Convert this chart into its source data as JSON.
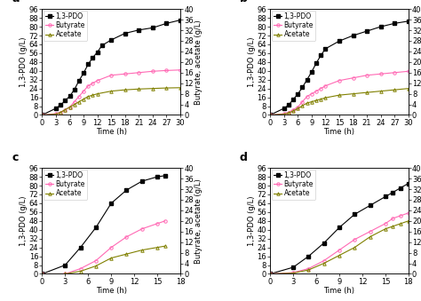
{
  "panel_a": {
    "label": "a",
    "pdo_time": [
      0,
      3,
      4,
      5,
      6,
      7,
      8,
      9,
      10,
      11,
      12,
      13,
      15,
      18,
      21,
      24,
      27,
      30
    ],
    "pdo_vals": [
      0,
      6,
      9,
      13,
      17,
      23,
      31,
      38,
      46,
      52,
      57,
      63,
      68,
      74,
      77,
      79,
      83,
      86
    ],
    "butyrate_time": [
      0,
      3,
      4,
      5,
      6,
      7,
      8,
      9,
      10,
      11,
      12,
      15,
      18,
      21,
      24,
      27,
      30
    ],
    "butyrate_vals": [
      0,
      0.5,
      1,
      2,
      3,
      5,
      7,
      9,
      11,
      12,
      13,
      15,
      15.5,
      16,
      16.5,
      16.8,
      17
    ],
    "acetate_time": [
      0,
      3,
      4,
      5,
      6,
      7,
      8,
      9,
      10,
      11,
      12,
      15,
      18,
      21,
      24,
      27,
      30
    ],
    "acetate_vals": [
      0,
      0.3,
      1,
      2,
      3,
      4,
      5,
      6,
      7,
      7.5,
      8,
      9,
      9.5,
      9.8,
      10,
      10.2,
      10.3
    ],
    "xlim": [
      0,
      30
    ],
    "xticks": [
      0,
      3,
      6,
      9,
      12,
      15,
      18,
      21,
      24,
      27,
      30
    ],
    "ylim_left": [
      0,
      96
    ],
    "ylim_right": [
      0,
      40
    ],
    "yticks_left": [
      0,
      8,
      16,
      24,
      32,
      40,
      48,
      56,
      64,
      72,
      80,
      88,
      96
    ],
    "yticks_right": [
      0,
      4,
      8,
      12,
      16,
      20,
      24,
      28,
      32,
      36,
      40
    ]
  },
  "panel_b": {
    "label": "b",
    "pdo_time": [
      0,
      3,
      4,
      5,
      6,
      7,
      8,
      9,
      10,
      11,
      12,
      15,
      18,
      21,
      24,
      27,
      30
    ],
    "pdo_vals": [
      0,
      6,
      9,
      14,
      19,
      25,
      32,
      39,
      47,
      54,
      60,
      67,
      72,
      76,
      80,
      83,
      85
    ],
    "butyrate_time": [
      0,
      3,
      4,
      5,
      6,
      7,
      8,
      9,
      10,
      11,
      12,
      15,
      18,
      21,
      24,
      27,
      30
    ],
    "butyrate_vals": [
      0,
      0.5,
      1,
      2,
      3,
      5,
      7,
      8,
      9,
      10,
      11,
      13,
      14,
      15,
      15.5,
      16,
      16.5
    ],
    "acetate_time": [
      0,
      3,
      4,
      5,
      6,
      7,
      8,
      9,
      10,
      11,
      12,
      15,
      18,
      21,
      24,
      27,
      30
    ],
    "acetate_vals": [
      0,
      0.3,
      0.8,
      1.5,
      2.5,
      3.5,
      4.5,
      5,
      5.5,
      6,
      6.5,
      7.5,
      8,
      8.5,
      9,
      9.5,
      10
    ],
    "xlim": [
      0,
      30
    ],
    "xticks": [
      0,
      3,
      6,
      9,
      12,
      15,
      18,
      21,
      24,
      27,
      30
    ],
    "ylim_left": [
      0,
      96
    ],
    "ylim_right": [
      0,
      40
    ],
    "yticks_left": [
      0,
      8,
      16,
      24,
      32,
      40,
      48,
      56,
      64,
      72,
      80,
      88,
      96
    ],
    "yticks_right": [
      0,
      4,
      8,
      12,
      16,
      20,
      24,
      28,
      32,
      36,
      40
    ]
  },
  "panel_c": {
    "label": "c",
    "pdo_time": [
      0,
      3,
      5,
      7,
      9,
      11,
      13,
      15,
      16
    ],
    "pdo_vals": [
      0,
      8,
      24,
      42,
      64,
      76,
      84,
      88,
      89
    ],
    "butyrate_time": [
      0,
      3,
      5,
      7,
      9,
      11,
      13,
      15,
      16
    ],
    "butyrate_vals": [
      0,
      0,
      2,
      5,
      10,
      14,
      17,
      19,
      20
    ],
    "acetate_time": [
      0,
      3,
      5,
      7,
      9,
      11,
      13,
      15,
      16
    ],
    "acetate_vals": [
      0,
      0,
      1,
      3,
      6,
      7.5,
      9,
      10,
      10.5
    ],
    "xlim": [
      0,
      18
    ],
    "xticks": [
      0,
      3,
      6,
      9,
      12,
      15,
      18
    ],
    "ylim_left": [
      0,
      96
    ],
    "ylim_right": [
      0,
      40
    ],
    "yticks_left": [
      0,
      8,
      16,
      24,
      32,
      40,
      48,
      56,
      64,
      72,
      80,
      88,
      96
    ],
    "yticks_right": [
      0,
      4,
      8,
      12,
      16,
      20,
      24,
      28,
      32,
      36,
      40
    ]
  },
  "panel_d": {
    "label": "d",
    "pdo_time": [
      0,
      3,
      5,
      7,
      9,
      11,
      13,
      15,
      16,
      17,
      18
    ],
    "pdo_vals": [
      0,
      6,
      16,
      28,
      42,
      54,
      62,
      70,
      74,
      78,
      82
    ],
    "butyrate_time": [
      0,
      3,
      5,
      7,
      9,
      11,
      13,
      15,
      16,
      17,
      18
    ],
    "butyrate_vals": [
      0,
      0.5,
      2,
      5,
      9,
      13,
      16,
      19,
      21,
      22,
      23
    ],
    "acetate_time": [
      0,
      3,
      5,
      7,
      9,
      11,
      13,
      15,
      16,
      17,
      18
    ],
    "acetate_vals": [
      0,
      0.3,
      1.5,
      4,
      7,
      10,
      14,
      17,
      18,
      19,
      20
    ],
    "xlim": [
      0,
      18
    ],
    "xticks": [
      0,
      3,
      6,
      9,
      12,
      15,
      18
    ],
    "ylim_left": [
      0,
      96
    ],
    "ylim_right": [
      0,
      40
    ],
    "yticks_left": [
      0,
      8,
      16,
      24,
      32,
      40,
      48,
      56,
      64,
      72,
      80,
      88,
      96
    ],
    "yticks_right": [
      0,
      4,
      8,
      12,
      16,
      20,
      24,
      28,
      32,
      36,
      40
    ]
  },
  "colors": {
    "pdo": "#000000",
    "butyrate": "#FF69B4",
    "acetate": "#808000"
  },
  "pdo_marker": "s",
  "butyrate_marker": "o",
  "acetate_marker": "^",
  "xlabel": "Time (h)",
  "ylabel_left": "1,3-PDO (g/L)",
  "ylabel_right": "Butyrate, acetate (g/L)",
  "legend_labels": [
    "1,3-PDO",
    "Butyrate",
    "Acetate"
  ],
  "fontsize": 6,
  "markersize": 2.5
}
